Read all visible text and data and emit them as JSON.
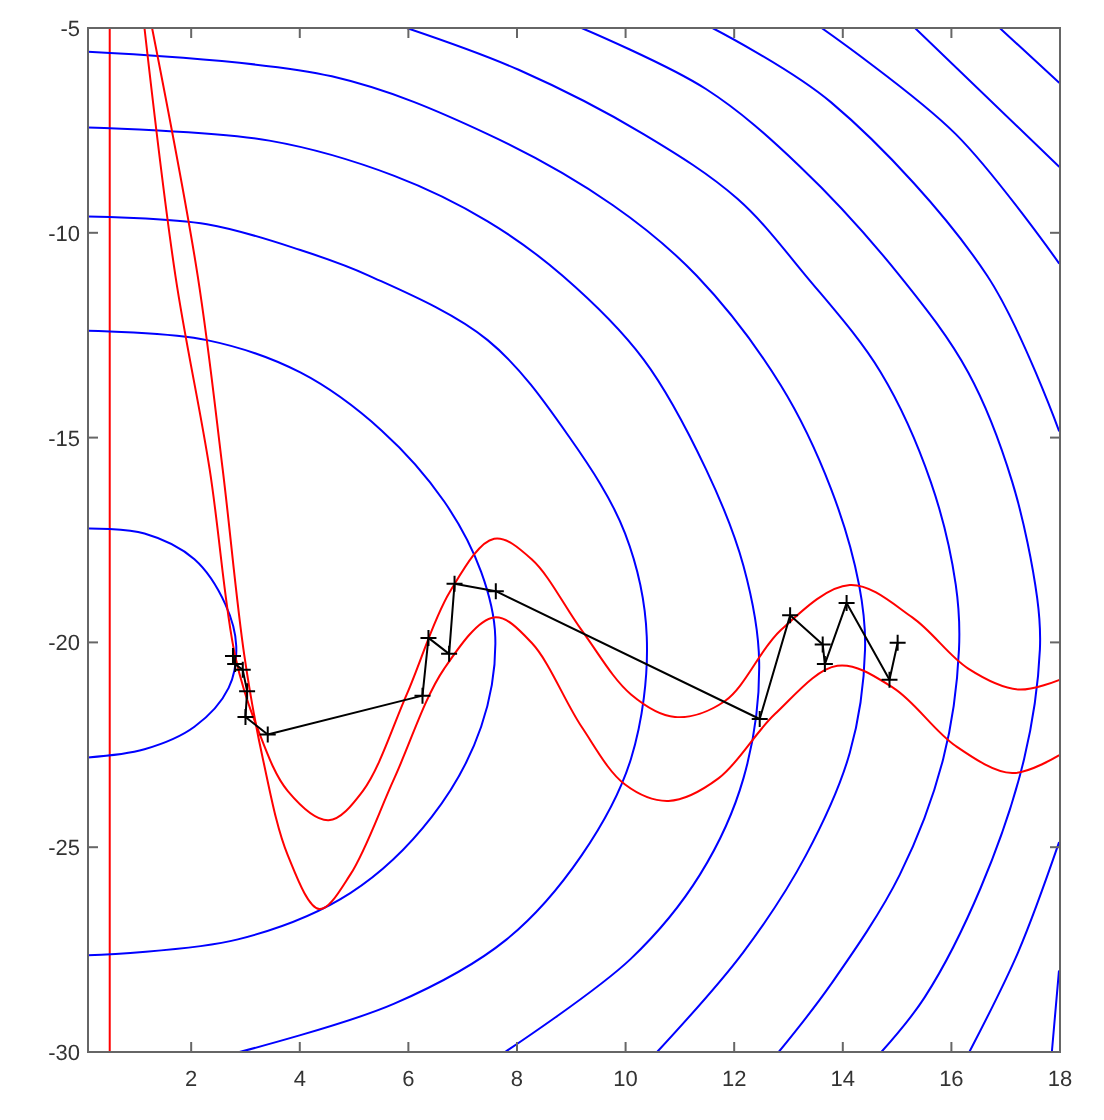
{
  "chart_data": {
    "type": "line",
    "xlim": [
      0.1,
      18
    ],
    "ylim": [
      -30,
      -5
    ],
    "xticks": [
      2,
      4,
      6,
      8,
      10,
      12,
      14,
      16,
      18
    ],
    "yticks": [
      -30,
      -25,
      -20,
      -15,
      -10,
      -5
    ],
    "grid": false,
    "ref_lines": [
      {
        "axis": "x",
        "value": 0.5,
        "color": "#ff0000"
      }
    ],
    "series": [
      {
        "color": "#0000ff",
        "x": [
          0.1,
          1.14,
          2.06,
          2.63,
          2.83,
          2.69,
          2.06,
          1.14,
          0.1
        ],
        "values": [
          -17.22,
          -17.34,
          -17.97,
          -19.07,
          -20.09,
          -21.11,
          -22.06,
          -22.61,
          -22.81
        ]
      },
      {
        "color": "#0000ff",
        "x": [
          0.1,
          2.29,
          4.01,
          5.51,
          6.66,
          7.34,
          7.6,
          7.34,
          6.43,
          4.93,
          2.86,
          0.1
        ],
        "values": [
          -12.39,
          -12.62,
          -13.41,
          -14.83,
          -16.56,
          -18.28,
          -19.86,
          -22.06,
          -24.26,
          -26.12,
          -27.25,
          -27.64
        ]
      },
      {
        "color": "#0000ff",
        "x": [
          0.1,
          2.29,
          4.01,
          5.28,
          7.46,
          8.96,
          9.99,
          10.39,
          10.1,
          9.19,
          7.81,
          5.74,
          2.89
        ],
        "values": [
          -9.6,
          -9.79,
          -10.42,
          -11.05,
          -12.62,
          -14.98,
          -17.34,
          -19.86,
          -22.84,
          -25.2,
          -27.25,
          -28.82,
          -30
        ]
      },
      {
        "color": "#0000ff",
        "x": [
          0.1,
          3.44,
          5.74,
          7.46,
          8.84,
          10.33,
          11.48,
          12.17,
          12.46,
          12.17,
          11.37,
          10.1,
          7.78
        ],
        "values": [
          -7.43,
          -7.75,
          -8.61,
          -9.72,
          -11.05,
          -13.09,
          -15.77,
          -18.13,
          -20.49,
          -23.32,
          -25.67,
          -27.72,
          -30
        ]
      },
      {
        "color": "#0000ff",
        "x": [
          0.1,
          4.59,
          7.46,
          9.76,
          11.31,
          12.86,
          13.78,
          14.3,
          14.41,
          14.13,
          13.32,
          12.17,
          10.58
        ],
        "values": [
          -5.58,
          -6.18,
          -7.59,
          -9.32,
          -11.05,
          -13.73,
          -16.24,
          -18.6,
          -20.17,
          -22.69,
          -25.2,
          -27.56,
          -30
        ]
      },
      {
        "color": "#0000ff",
        "x": [
          5.97,
          8.03,
          10.33,
          12.06,
          13.32,
          14.7,
          15.62,
          16.08,
          16.14,
          15.85,
          15.05,
          13.78,
          12.82
        ],
        "values": [
          -5,
          -6.02,
          -7.59,
          -9.17,
          -11.05,
          -13.41,
          -16.08,
          -18.59,
          -20.17,
          -22.84,
          -25.67,
          -28.35,
          -30
        ]
      },
      {
        "color": "#0000ff",
        "x": [
          9.19,
          11.48,
          13.21,
          15.05,
          16.31,
          17.12,
          17.58,
          17.63,
          17.34,
          16.54,
          15.51,
          14.71
        ],
        "values": [
          -5,
          -6.49,
          -8.38,
          -11.05,
          -13.41,
          -16.08,
          -18.92,
          -20.17,
          -22.84,
          -25.99,
          -28.66,
          -30
        ]
      },
      {
        "color": "#0000ff",
        "x": [
          11.6,
          13.78,
          16.66,
          17.98
        ],
        "values": [
          -5,
          -6.81,
          -11.05,
          -14.83
        ]
      },
      {
        "color": "#0000ff",
        "x": [
          17.98,
          17.23,
          16.33
        ],
        "values": [
          -24.89,
          -27.56,
          -30
        ]
      },
      {
        "color": "#0000ff",
        "x": [
          13.61,
          16.08,
          17.98
        ],
        "values": [
          -5,
          -7.59,
          -10.74
        ]
      },
      {
        "color": "#0000ff",
        "x": [
          17.98,
          17.85
        ],
        "values": [
          -28.03,
          -30
        ]
      },
      {
        "color": "#0000ff",
        "x": [
          15.33,
          17.98
        ],
        "values": [
          -5,
          -8.38
        ]
      },
      {
        "color": "#0000ff",
        "x": [
          16.89,
          17.98
        ],
        "values": [
          -5,
          -6.33
        ]
      },
      {
        "color": "#ff0000",
        "x": [
          1.14,
          1.71,
          2.34,
          2.81,
          3.21,
          3.78,
          4.53,
          5.16,
          5.97,
          6.77,
          7.58,
          8.27,
          9.19,
          10.1,
          10.91,
          11.83,
          12.86,
          14.13,
          15.28,
          16.31,
          17.23,
          17.98
        ],
        "values": [
          -5,
          -11.05,
          -15.77,
          -20.33,
          -22.06,
          -23.63,
          -24.34,
          -23.63,
          -21.27,
          -18.75,
          -17.47,
          -17.97,
          -19.7,
          -21.27,
          -21.82,
          -21.43,
          -19.7,
          -18.6,
          -19.39,
          -20.64,
          -21.15,
          -20.92
        ]
      },
      {
        "color": "#ff0000",
        "x": [
          1.28,
          2.12,
          2.58,
          2.98,
          3.32,
          3.78,
          4.36,
          4.93,
          5.74,
          6.66,
          7.58,
          8.27,
          9.19,
          9.99,
          10.79,
          11.71,
          12.75,
          13.9,
          14.93,
          16.08,
          17.12,
          17.98
        ],
        "values": [
          -5,
          -11.05,
          -15.77,
          -20.33,
          -22.84,
          -25.2,
          -26.51,
          -25.67,
          -23.32,
          -20.64,
          -19.39,
          -20.01,
          -22.06,
          -23.47,
          -23.87,
          -23.32,
          -21.75,
          -20.57,
          -21.11,
          -22.53,
          -23.19,
          -22.76
        ]
      },
      {
        "color": "#000000",
        "marker": "cross",
        "x": [
          2.77,
          2.81,
          2.95,
          3.03,
          3.0,
          3.41,
          6.26,
          6.37,
          6.75,
          6.85,
          7.61,
          12.47,
          13.03,
          13.63,
          13.67,
          14.07,
          14.86,
          15.01
        ],
        "values": [
          -20.33,
          -20.53,
          -20.67,
          -21.19,
          -21.82,
          -22.25,
          -21.3,
          -19.89,
          -20.28,
          -18.57,
          -18.75,
          -21.87,
          -19.34,
          -20.05,
          -20.53,
          -19.04,
          -20.91,
          -20.01
        ]
      }
    ]
  }
}
